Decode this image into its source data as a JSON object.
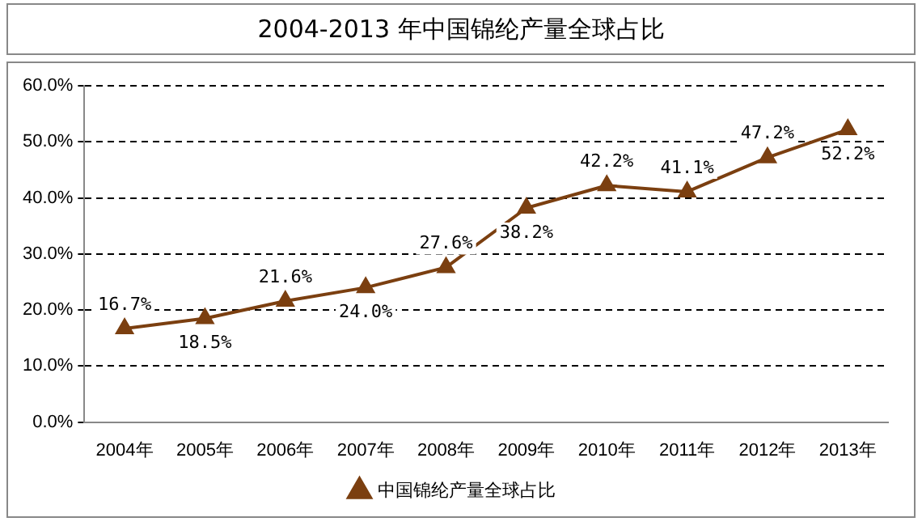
{
  "chart_data": {
    "type": "line",
    "title": "2004-2013 年中国锦纶产量全球占比",
    "categories": [
      "2004年",
      "2005年",
      "2006年",
      "2007年",
      "2008年",
      "2009年",
      "2010年",
      "2011年",
      "2012年",
      "2013年"
    ],
    "series": [
      {
        "name": "中国锦纶产量全球占比",
        "color": "#7b3f10",
        "values": [
          16.7,
          18.5,
          21.6,
          24.0,
          27.6,
          38.2,
          42.2,
          41.1,
          47.2,
          52.2
        ],
        "value_labels": [
          "16.7%",
          "18.5%",
          "21.6%",
          "24.0%",
          "27.6%",
          "38.2%",
          "42.2%",
          "41.1%",
          "47.2%",
          "52.2%"
        ]
      }
    ],
    "ylim": [
      0,
      60
    ],
    "yticks": [
      {
        "value": 0,
        "label": "0.0%"
      },
      {
        "value": 10,
        "label": "10.0%"
      },
      {
        "value": 20,
        "label": "20.0%"
      },
      {
        "value": 30,
        "label": "30.0%"
      },
      {
        "value": 40,
        "label": "40.0%"
      },
      {
        "value": 50,
        "label": "50.0%"
      },
      {
        "value": 60,
        "label": "60.0%"
      }
    ],
    "grid": "y",
    "legend": "bottom",
    "marker": "triangle",
    "line_style": "solid"
  }
}
